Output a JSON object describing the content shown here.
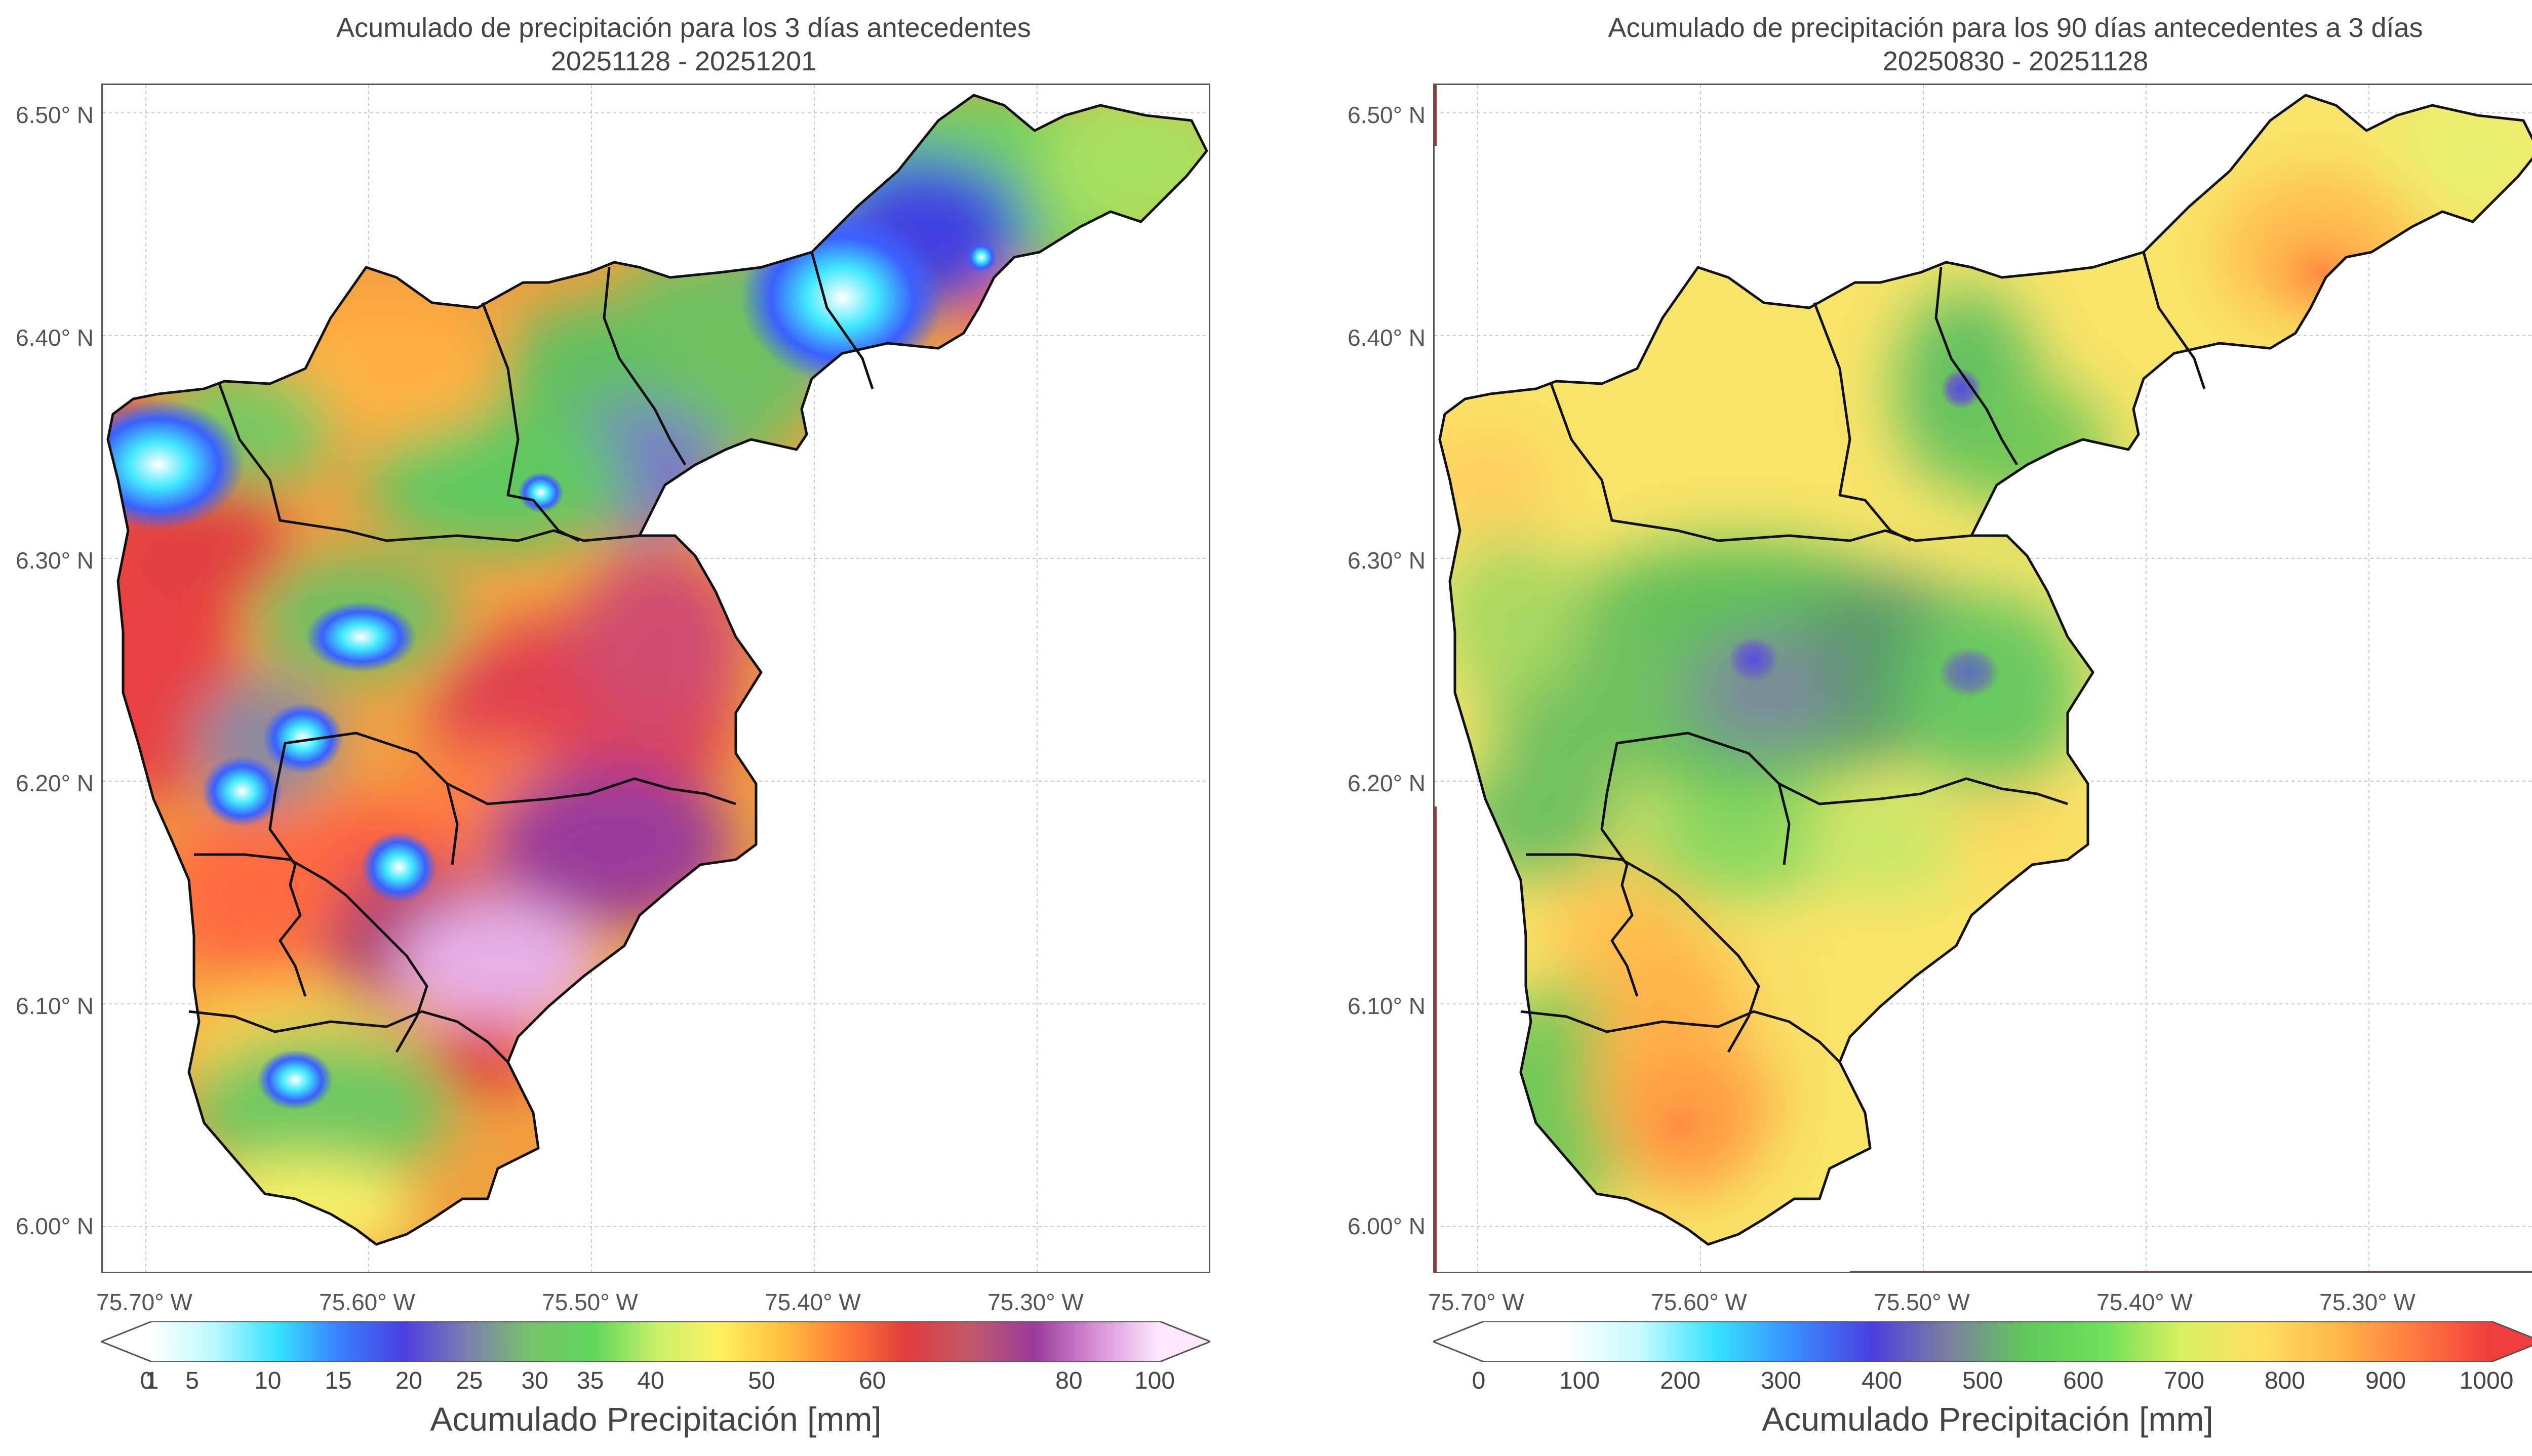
{
  "maps": [
    {
      "id": "left",
      "title_line1": "Acumulado de precipitación para los 3 días antecedentes",
      "title_line2": "20251128 - 20251201",
      "lat_ticks": [
        "6.50° N",
        "6.40° N",
        "6.30° N",
        "6.20° N",
        "6.10° N",
        "6.00° N"
      ],
      "lon_ticks": [
        "75.70° W",
        "75.60° W",
        "75.50° W",
        "75.40° W",
        "75.30° W"
      ],
      "colorbar": {
        "label": "Acumulado Precipitación [mm]",
        "ticks": [
          "0",
          "1",
          "5",
          "10",
          "15",
          "20",
          "25",
          "30",
          "35",
          "40",
          "50",
          "60",
          "80",
          "100"
        ],
        "tick_values": [
          0,
          1,
          5,
          10,
          15,
          20,
          25,
          30,
          35,
          40,
          50,
          60,
          80,
          100
        ],
        "colors": [
          "#ffffff",
          "#b8f8ff",
          "#35e2ff",
          "#3a7dff",
          "#4a3fe0",
          "#7d7fb0",
          "#77c26a",
          "#5fd65c",
          "#c7f06a",
          "#fff060",
          "#ffc040",
          "#ff7a38",
          "#e03c3c",
          "#c05a6a",
          "#9a3a9a",
          "#d890d8",
          "#ffe8ff"
        ]
      }
    },
    {
      "id": "right",
      "title_line1": "Acumulado de precipitación para los 90 días antecedentes a 3 días",
      "title_line2": "20250830 - 20251128",
      "lat_ticks": [
        "6.50° N",
        "6.40° N",
        "6.30° N",
        "6.20° N",
        "6.10° N",
        "6.00° N"
      ],
      "lon_ticks": [
        "75.70° W",
        "75.60° W",
        "75.50° W",
        "75.40° W",
        "75.30° W"
      ],
      "colorbar": {
        "label": "Acumulado Precipitación [mm]",
        "ticks": [
          "0",
          "100",
          "200",
          "300",
          "400",
          "500",
          "600",
          "700",
          "800",
          "900",
          "1000"
        ],
        "tick_values": [
          0,
          100,
          200,
          300,
          400,
          500,
          600,
          700,
          800,
          900,
          1000
        ],
        "colors": [
          "#ffffff",
          "#ffffff",
          "#c8faff",
          "#35e2ff",
          "#3a8cff",
          "#4a3fe0",
          "#7d7fa0",
          "#5fc85a",
          "#6ee05a",
          "#d8f060",
          "#ffe060",
          "#ffb848",
          "#ff7a40",
          "#f03c3c"
        ]
      }
    }
  ]
}
